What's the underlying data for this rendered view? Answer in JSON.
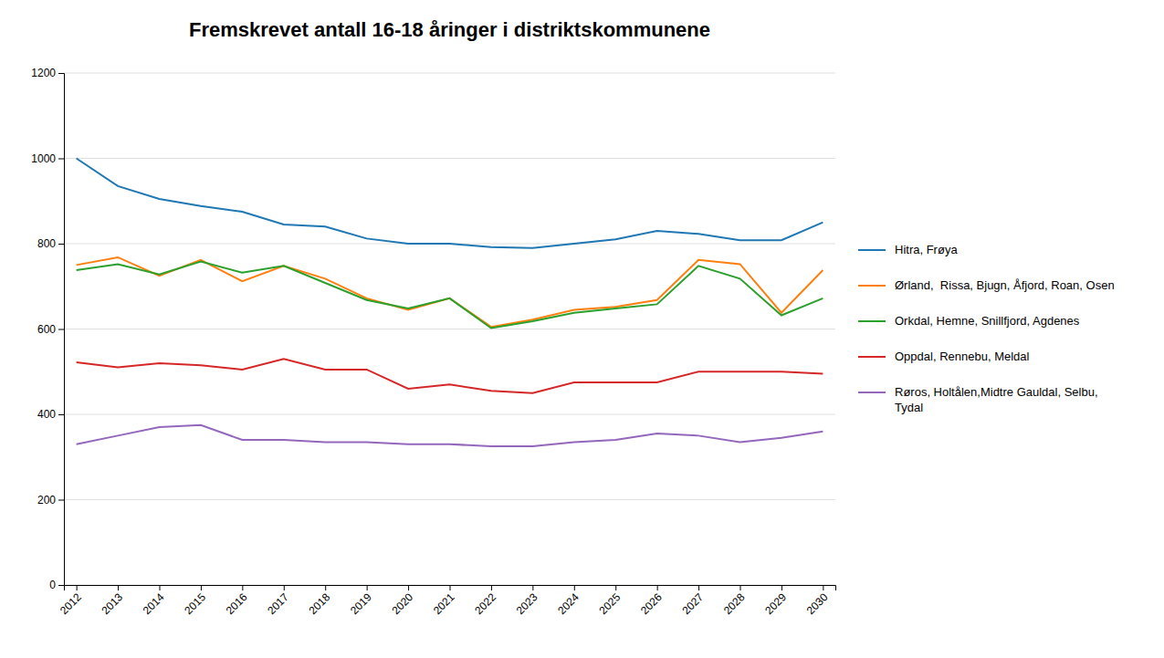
{
  "chart_data": {
    "type": "line",
    "title": "Fremskrevet antall 16-18 åringer i distriktskommunene",
    "x": [
      2012,
      2013,
      2014,
      2015,
      2016,
      2017,
      2018,
      2019,
      2020,
      2021,
      2022,
      2023,
      2024,
      2025,
      2026,
      2027,
      2028,
      2029,
      2030
    ],
    "series": [
      {
        "name": "Hitra, Frøya",
        "values": [
          1000,
          935,
          905,
          888,
          875,
          845,
          840,
          812,
          800,
          800,
          792,
          790,
          800,
          810,
          830,
          823,
          808,
          808,
          850
        ]
      },
      {
        "name": "Ørland,  Rissa, Bjugn, Åfjord, Roan, Osen",
        "values": [
          750,
          768,
          725,
          762,
          712,
          748,
          718,
          672,
          645,
          672,
          605,
          622,
          645,
          652,
          668,
          762,
          752,
          638,
          738
        ]
      },
      {
        "name": "Orkdal, Hemne, Snillfjord, Agdenes",
        "values": [
          738,
          752,
          728,
          758,
          732,
          748,
          708,
          668,
          648,
          672,
          602,
          618,
          638,
          648,
          658,
          748,
          718,
          632,
          672
        ]
      },
      {
        "name": "Oppdal, Rennebu, Meldal",
        "values": [
          522,
          510,
          520,
          515,
          505,
          530,
          505,
          505,
          460,
          470,
          455,
          450,
          475,
          475,
          475,
          500,
          500,
          500,
          495
        ]
      },
      {
        "name": "Røros, Holtålen,Midtre Gauldal, Selbu,\nTydal",
        "values": [
          330,
          350,
          370,
          375,
          340,
          340,
          335,
          335,
          330,
          330,
          325,
          325,
          335,
          340,
          355,
          350,
          335,
          345,
          360
        ]
      }
    ],
    "xlim": [
      2011.7,
      2030.3
    ],
    "xticks": [
      2012,
      2013,
      2014,
      2015,
      2016,
      2017,
      2018,
      2019,
      2020,
      2021,
      2022,
      2023,
      2024,
      2025,
      2026,
      2027,
      2028,
      2029,
      2030
    ],
    "ylim": [
      0,
      1200
    ],
    "yticks": [
      0,
      200,
      400,
      600,
      800,
      1000,
      1200
    ],
    "grid": true,
    "legend": "right"
  }
}
